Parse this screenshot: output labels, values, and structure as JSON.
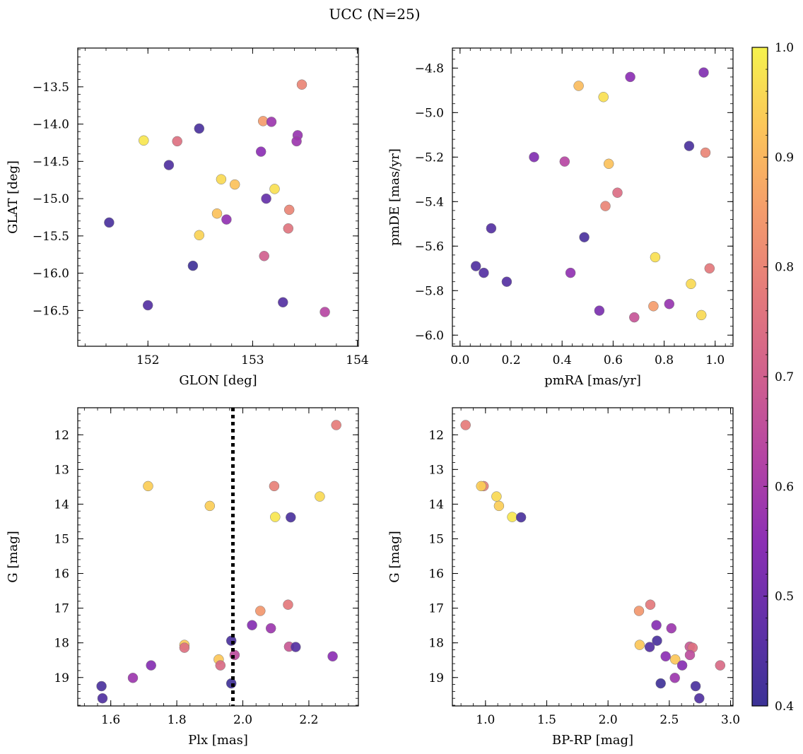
{
  "figure": {
    "title": "UCC (N=25)"
  },
  "colorbar": {
    "range": [
      0.4,
      1.0
    ],
    "ticks": [
      0.4,
      0.5,
      0.6,
      0.7,
      0.8,
      0.9,
      1.0
    ],
    "colormap": "plasma",
    "colors": [
      "#3b3296",
      "#6231a8",
      "#8c2fb4",
      "#b444a4",
      "#d0608e",
      "#e47a7b",
      "#f49c6c",
      "#fcc45a",
      "#f5f24d"
    ]
  },
  "chart_data": [
    {
      "type": "scatter",
      "xlabel": "GLON [deg]",
      "ylabel": "GLAT [deg]",
      "xlim": [
        151.33,
        154.01
      ],
      "ylim": [
        -16.98,
        -12.98
      ],
      "y_inverted": false,
      "xticks": [
        152,
        153,
        154
      ],
      "yticks": [
        -16.5,
        -16.0,
        -15.5,
        -15.0,
        -14.5,
        -14.0,
        -13.5
      ],
      "points": [
        {
          "x": 153.47,
          "y": -13.47,
          "c": 0.8
        },
        {
          "x": 153.1,
          "y": -13.96,
          "c": 0.85
        },
        {
          "x": 153.18,
          "y": -13.97,
          "c": 0.58
        },
        {
          "x": 152.49,
          "y": -14.06,
          "c": 0.43
        },
        {
          "x": 153.43,
          "y": -14.15,
          "c": 0.57
        },
        {
          "x": 153.42,
          "y": -14.23,
          "c": 0.58
        },
        {
          "x": 151.96,
          "y": -14.22,
          "c": 0.98
        },
        {
          "x": 152.28,
          "y": -14.23,
          "c": 0.75
        },
        {
          "x": 153.08,
          "y": -14.37,
          "c": 0.55
        },
        {
          "x": 152.2,
          "y": -14.55,
          "c": 0.44
        },
        {
          "x": 152.7,
          "y": -14.74,
          "c": 0.96
        },
        {
          "x": 152.83,
          "y": -14.81,
          "c": 0.92
        },
        {
          "x": 153.21,
          "y": -14.87,
          "c": 0.97
        },
        {
          "x": 153.13,
          "y": -15.0,
          "c": 0.48
        },
        {
          "x": 153.35,
          "y": -15.15,
          "c": 0.8
        },
        {
          "x": 152.66,
          "y": -15.2,
          "c": 0.92
        },
        {
          "x": 152.75,
          "y": -15.28,
          "c": 0.56
        },
        {
          "x": 151.63,
          "y": -15.32,
          "c": 0.43
        },
        {
          "x": 153.34,
          "y": -15.4,
          "c": 0.76
        },
        {
          "x": 152.49,
          "y": -15.49,
          "c": 0.95
        },
        {
          "x": 153.11,
          "y": -15.77,
          "c": 0.7
        },
        {
          "x": 152.43,
          "y": -15.9,
          "c": 0.41
        },
        {
          "x": 153.29,
          "y": -16.39,
          "c": 0.45
        },
        {
          "x": 152.0,
          "y": -16.43,
          "c": 0.45
        },
        {
          "x": 153.69,
          "y": -16.52,
          "c": 0.63
        }
      ]
    },
    {
      "type": "scatter",
      "xlabel": "pmRA [mas/yr]",
      "ylabel": "pmDE [mas/yr]",
      "xlim": [
        -0.03,
        1.07
      ],
      "ylim": [
        -6.05,
        -4.71
      ],
      "y_inverted": false,
      "xticks": [
        0.0,
        0.2,
        0.4,
        0.6,
        0.8,
        1.0
      ],
      "yticks": [
        -6.0,
        -5.8,
        -5.6,
        -5.4,
        -5.2,
        -5.0,
        -4.8
      ],
      "points": [
        {
          "x": 0.955,
          "y": -4.82,
          "c": 0.53
        },
        {
          "x": 0.667,
          "y": -4.84,
          "c": 0.55
        },
        {
          "x": 0.465,
          "y": -4.88,
          "c": 0.91
        },
        {
          "x": 0.562,
          "y": -4.93,
          "c": 0.97
        },
        {
          "x": 0.898,
          "y": -5.15,
          "c": 0.43
        },
        {
          "x": 0.962,
          "y": -5.18,
          "c": 0.8
        },
        {
          "x": 0.29,
          "y": -5.2,
          "c": 0.53
        },
        {
          "x": 0.41,
          "y": -5.22,
          "c": 0.63
        },
        {
          "x": 0.583,
          "y": -5.23,
          "c": 0.92
        },
        {
          "x": 0.617,
          "y": -5.36,
          "c": 0.74
        },
        {
          "x": 0.57,
          "y": -5.42,
          "c": 0.8
        },
        {
          "x": 0.122,
          "y": -5.52,
          "c": 0.45
        },
        {
          "x": 0.487,
          "y": -5.56,
          "c": 0.43
        },
        {
          "x": 0.765,
          "y": -5.65,
          "c": 0.97
        },
        {
          "x": 0.062,
          "y": -5.69,
          "c": 0.44
        },
        {
          "x": 0.978,
          "y": -5.7,
          "c": 0.77
        },
        {
          "x": 0.093,
          "y": -5.72,
          "c": 0.45
        },
        {
          "x": 0.433,
          "y": -5.72,
          "c": 0.56
        },
        {
          "x": 0.183,
          "y": -5.76,
          "c": 0.45
        },
        {
          "x": 0.905,
          "y": -5.77,
          "c": 0.96
        },
        {
          "x": 0.82,
          "y": -5.86,
          "c": 0.57
        },
        {
          "x": 0.758,
          "y": -5.87,
          "c": 0.85
        },
        {
          "x": 0.546,
          "y": -5.89,
          "c": 0.52
        },
        {
          "x": 0.946,
          "y": -5.91,
          "c": 0.96
        },
        {
          "x": 0.683,
          "y": -5.92,
          "c": 0.67
        }
      ]
    },
    {
      "type": "scatter",
      "xlabel": "Plx [mas]",
      "ylabel": "G [mag]",
      "xlim": [
        1.5,
        2.35
      ],
      "ylim": [
        11.22,
        19.82
      ],
      "y_inverted": true,
      "xticks": [
        1.6,
        1.8,
        2.0,
        2.2
      ],
      "yticks": [
        12,
        13,
        14,
        15,
        16,
        17,
        18,
        19
      ],
      "vline": 1.97,
      "points": [
        {
          "x": 2.283,
          "y": 11.72,
          "c": 0.78
        },
        {
          "x": 1.713,
          "y": 13.48,
          "c": 0.94
        },
        {
          "x": 2.095,
          "y": 13.48,
          "c": 0.79
        },
        {
          "x": 2.233,
          "y": 13.78,
          "c": 0.96
        },
        {
          "x": 1.9,
          "y": 14.05,
          "c": 0.94
        },
        {
          "x": 2.098,
          "y": 14.37,
          "c": 0.98
        },
        {
          "x": 2.145,
          "y": 14.38,
          "c": 0.43
        },
        {
          "x": 2.053,
          "y": 17.08,
          "c": 0.84
        },
        {
          "x": 2.137,
          "y": 16.9,
          "c": 0.77
        },
        {
          "x": 2.028,
          "y": 17.49,
          "c": 0.54
        },
        {
          "x": 2.085,
          "y": 17.58,
          "c": 0.58
        },
        {
          "x": 1.965,
          "y": 17.94,
          "c": 0.43
        },
        {
          "x": 1.823,
          "y": 18.06,
          "c": 0.93
        },
        {
          "x": 1.823,
          "y": 18.14,
          "c": 0.75
        },
        {
          "x": 2.14,
          "y": 18.11,
          "c": 0.68
        },
        {
          "x": 2.16,
          "y": 18.12,
          "c": 0.45
        },
        {
          "x": 1.975,
          "y": 18.35,
          "c": 0.65
        },
        {
          "x": 2.272,
          "y": 18.39,
          "c": 0.55
        },
        {
          "x": 1.927,
          "y": 18.48,
          "c": 0.93
        },
        {
          "x": 1.932,
          "y": 18.65,
          "c": 0.73
        },
        {
          "x": 1.722,
          "y": 18.65,
          "c": 0.54
        },
        {
          "x": 1.667,
          "y": 19.01,
          "c": 0.58
        },
        {
          "x": 1.965,
          "y": 19.17,
          "c": 0.41
        },
        {
          "x": 1.572,
          "y": 19.25,
          "c": 0.43
        },
        {
          "x": 1.575,
          "y": 19.6,
          "c": 0.44
        }
      ]
    },
    {
      "type": "scatter",
      "xlabel": "BP-RP [mag]",
      "ylabel": "G [mag]",
      "xlim": [
        0.73,
        3.02
      ],
      "ylim": [
        11.22,
        19.82
      ],
      "y_inverted": true,
      "xticks": [
        1.0,
        1.5,
        2.0,
        2.5,
        3.0
      ],
      "yticks": [
        12,
        13,
        14,
        15,
        16,
        17,
        18,
        19
      ],
      "points": [
        {
          "x": 0.838,
          "y": 11.72,
          "c": 0.78
        },
        {
          "x": 0.985,
          "y": 13.48,
          "c": 0.79
        },
        {
          "x": 0.965,
          "y": 13.48,
          "c": 0.94
        },
        {
          "x": 1.09,
          "y": 13.78,
          "c": 0.96
        },
        {
          "x": 1.11,
          "y": 14.05,
          "c": 0.94
        },
        {
          "x": 1.218,
          "y": 14.37,
          "c": 0.98
        },
        {
          "x": 1.29,
          "y": 14.38,
          "c": 0.43
        },
        {
          "x": 2.345,
          "y": 16.9,
          "c": 0.77
        },
        {
          "x": 2.253,
          "y": 17.08,
          "c": 0.84
        },
        {
          "x": 2.395,
          "y": 17.49,
          "c": 0.54
        },
        {
          "x": 2.517,
          "y": 17.58,
          "c": 0.58
        },
        {
          "x": 2.4,
          "y": 17.94,
          "c": 0.43
        },
        {
          "x": 2.258,
          "y": 18.06,
          "c": 0.93
        },
        {
          "x": 2.34,
          "y": 18.12,
          "c": 0.45
        },
        {
          "x": 2.667,
          "y": 18.11,
          "c": 0.68
        },
        {
          "x": 2.69,
          "y": 18.14,
          "c": 0.75
        },
        {
          "x": 2.668,
          "y": 18.35,
          "c": 0.65
        },
        {
          "x": 2.47,
          "y": 18.39,
          "c": 0.55
        },
        {
          "x": 2.548,
          "y": 18.48,
          "c": 0.93
        },
        {
          "x": 2.605,
          "y": 18.65,
          "c": 0.54
        },
        {
          "x": 2.915,
          "y": 18.65,
          "c": 0.73
        },
        {
          "x": 2.545,
          "y": 19.01,
          "c": 0.58
        },
        {
          "x": 2.43,
          "y": 19.17,
          "c": 0.41
        },
        {
          "x": 2.715,
          "y": 19.25,
          "c": 0.43
        },
        {
          "x": 2.745,
          "y": 19.6,
          "c": 0.44
        }
      ]
    }
  ]
}
